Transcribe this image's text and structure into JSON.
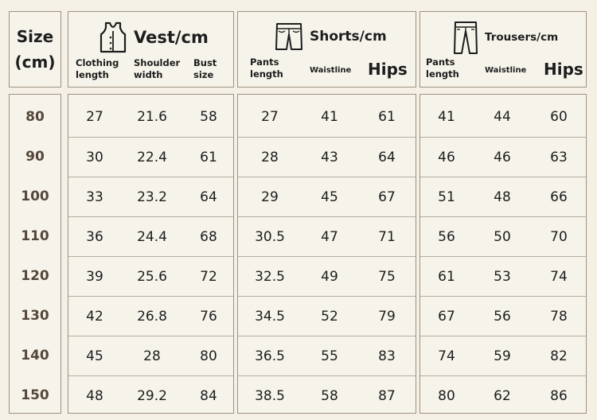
{
  "size_header": {
    "line1": "Size",
    "line2": "(cm)"
  },
  "sizes": [
    "80",
    "90",
    "100",
    "110",
    "120",
    "130",
    "140",
    "150"
  ],
  "vest": {
    "title": "Vest/cm",
    "col1": "Clothing length",
    "col2": "Shoulder width",
    "col3": "Bust size",
    "rows": [
      [
        "27",
        "21.6",
        "58"
      ],
      [
        "30",
        "22.4",
        "61"
      ],
      [
        "33",
        "23.2",
        "64"
      ],
      [
        "36",
        "24.4",
        "68"
      ],
      [
        "39",
        "25.6",
        "72"
      ],
      [
        "42",
        "26.8",
        "76"
      ],
      [
        "45",
        "28",
        "80"
      ],
      [
        "48",
        "29.2",
        "84"
      ]
    ]
  },
  "shorts": {
    "title": "Shorts/cm",
    "col1": "Pants length",
    "col2": "Waistline",
    "col3": "Hips",
    "rows": [
      [
        "27",
        "41",
        "61"
      ],
      [
        "28",
        "43",
        "64"
      ],
      [
        "29",
        "45",
        "67"
      ],
      [
        "30.5",
        "47",
        "71"
      ],
      [
        "32.5",
        "49",
        "75"
      ],
      [
        "34.5",
        "52",
        "79"
      ],
      [
        "36.5",
        "55",
        "83"
      ],
      [
        "38.5",
        "58",
        "87"
      ]
    ]
  },
  "trousers": {
    "title": "Trousers/cm",
    "col1": "Pants length",
    "col2": "Waistline",
    "col3": "Hips",
    "rows": [
      [
        "41",
        "44",
        "60"
      ],
      [
        "46",
        "46",
        "63"
      ],
      [
        "51",
        "48",
        "66"
      ],
      [
        "56",
        "50",
        "70"
      ],
      [
        "61",
        "53",
        "74"
      ],
      [
        "67",
        "56",
        "78"
      ],
      [
        "74",
        "59",
        "82"
      ],
      [
        "80",
        "62",
        "86"
      ]
    ]
  }
}
